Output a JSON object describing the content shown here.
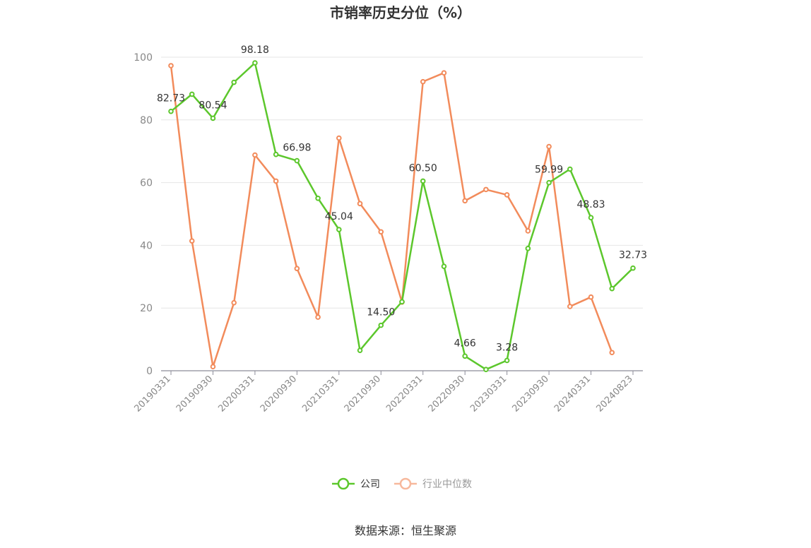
{
  "chart_data": {
    "type": "line",
    "title": "市销率历史分位（%）",
    "ylim": [
      0,
      100
    ],
    "yticks": [
      0,
      20,
      40,
      60,
      80,
      100
    ],
    "grid": true,
    "legend_position": "bottom",
    "x": [
      "20190331",
      "20190630",
      "20190930",
      "20191231",
      "20200331",
      "20200630",
      "20200930",
      "20201231",
      "20210331",
      "20210630",
      "20210930",
      "20211231",
      "20220331",
      "20220630",
      "20220930",
      "20221231",
      "20230331",
      "20230630",
      "20230930",
      "20231231",
      "20240331",
      "20240630",
      "20240823"
    ],
    "x_tick_labels": [
      "20190331",
      "20190930",
      "20200331",
      "20200930",
      "20210331",
      "20210930",
      "20220331",
      "20220930",
      "20230331",
      "20230930",
      "20240331",
      "20240823"
    ],
    "series": [
      {
        "name": "公司",
        "color": "#5cc72c",
        "values": [
          82.73,
          88.2,
          80.54,
          92.0,
          98.18,
          69.0,
          66.98,
          55.0,
          45.04,
          6.5,
          14.5,
          22.0,
          60.5,
          33.3,
          4.66,
          0.4,
          3.28,
          39.0,
          59.99,
          64.3,
          48.83,
          26.2,
          32.73
        ],
        "labels": {
          "0": "82.73",
          "2": "80.54",
          "4": "98.18",
          "6": "66.98",
          "8": "45.04",
          "10": "14.50",
          "12": "60.50",
          "14": "4.66",
          "16": "3.28",
          "18": "59.99",
          "20": "48.83",
          "22": "32.73"
        }
      },
      {
        "name": "行业中位数",
        "color": "#f28b5b",
        "values": [
          97.3,
          41.4,
          1.3,
          21.7,
          68.8,
          60.5,
          32.6,
          17.1,
          74.2,
          53.3,
          44.3,
          21.9,
          92.2,
          95.0,
          54.2,
          57.8,
          56.1,
          44.6,
          71.5,
          20.5,
          23.5,
          5.8,
          null
        ]
      }
    ]
  },
  "legend": [
    {
      "name": "公司",
      "color": "#5cc72c",
      "text_color": "#333333"
    },
    {
      "name": "行业中位数",
      "color": "#f7b89c",
      "text_color": "#999999"
    }
  ],
  "source": "数据来源：恒生聚源"
}
